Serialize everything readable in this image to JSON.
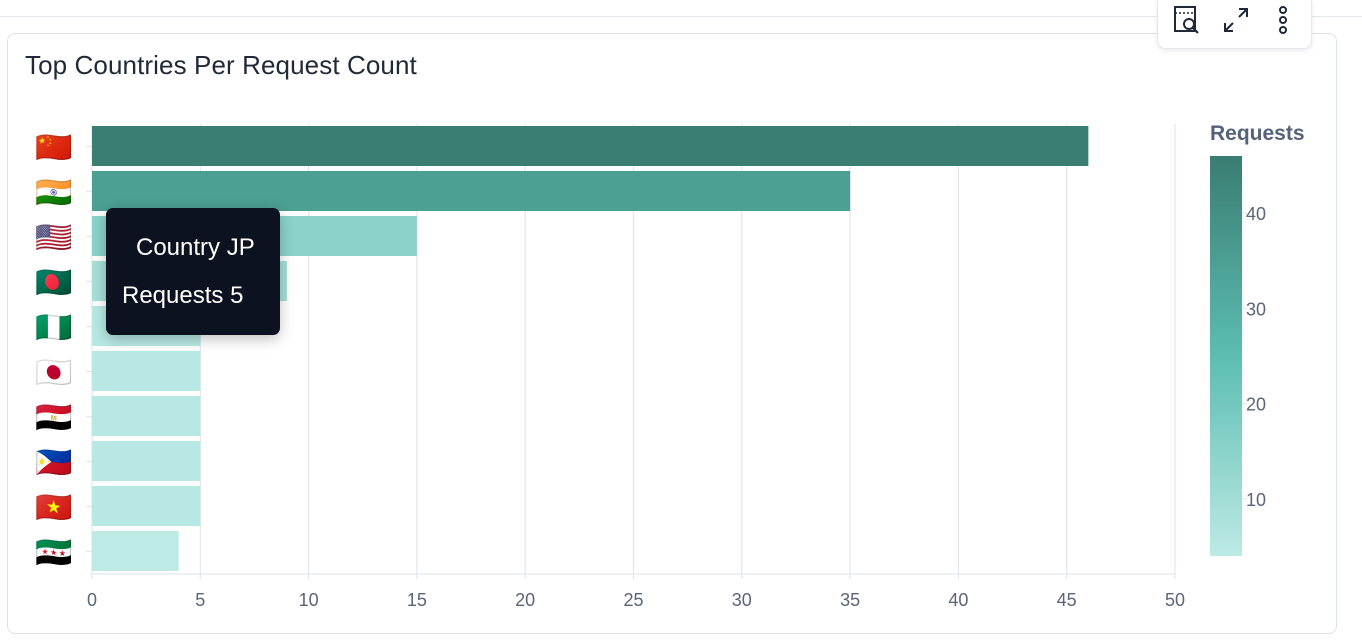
{
  "panel": {
    "title": "Top Countries Per Request Count"
  },
  "toolbar": {
    "icons": [
      "inspect-icon",
      "expand-icon",
      "more-vertical-icon"
    ]
  },
  "tooltip": {
    "country_label": "Country",
    "country_value": "JP",
    "requests_label": "Requests",
    "requests_value": "5"
  },
  "colors": {
    "bar_high": "#3a7d72",
    "bar_low": "#bdeae5",
    "grid": "#e3e6ef",
    "axis_text": "#5b6478"
  },
  "chart_data": {
    "type": "bar",
    "orientation": "horizontal",
    "title": "Top Countries Per Request Count",
    "categories": [
      "CN",
      "IN",
      "US",
      "BD",
      "NG",
      "JP",
      "EG",
      "PH",
      "VN",
      "SY"
    ],
    "flags": [
      "🇨🇳",
      "🇮🇳",
      "🇺🇸",
      "🇧🇩",
      "🇳🇬",
      "🇯🇵",
      "🇪🇬",
      "🇵🇭",
      "🇻🇳",
      "🇸🇾"
    ],
    "values": [
      46,
      35,
      15,
      9,
      5,
      5,
      5,
      5,
      5,
      4
    ],
    "xlim": [
      0,
      50
    ],
    "xticks": [
      0,
      5,
      10,
      15,
      20,
      25,
      30,
      35,
      40,
      45,
      50
    ],
    "grid": true,
    "legend": {
      "title": "Requests",
      "type": "color-gradient",
      "placement": "right",
      "range": [
        4,
        46
      ],
      "ticks": [
        10,
        20,
        30,
        40
      ]
    }
  }
}
